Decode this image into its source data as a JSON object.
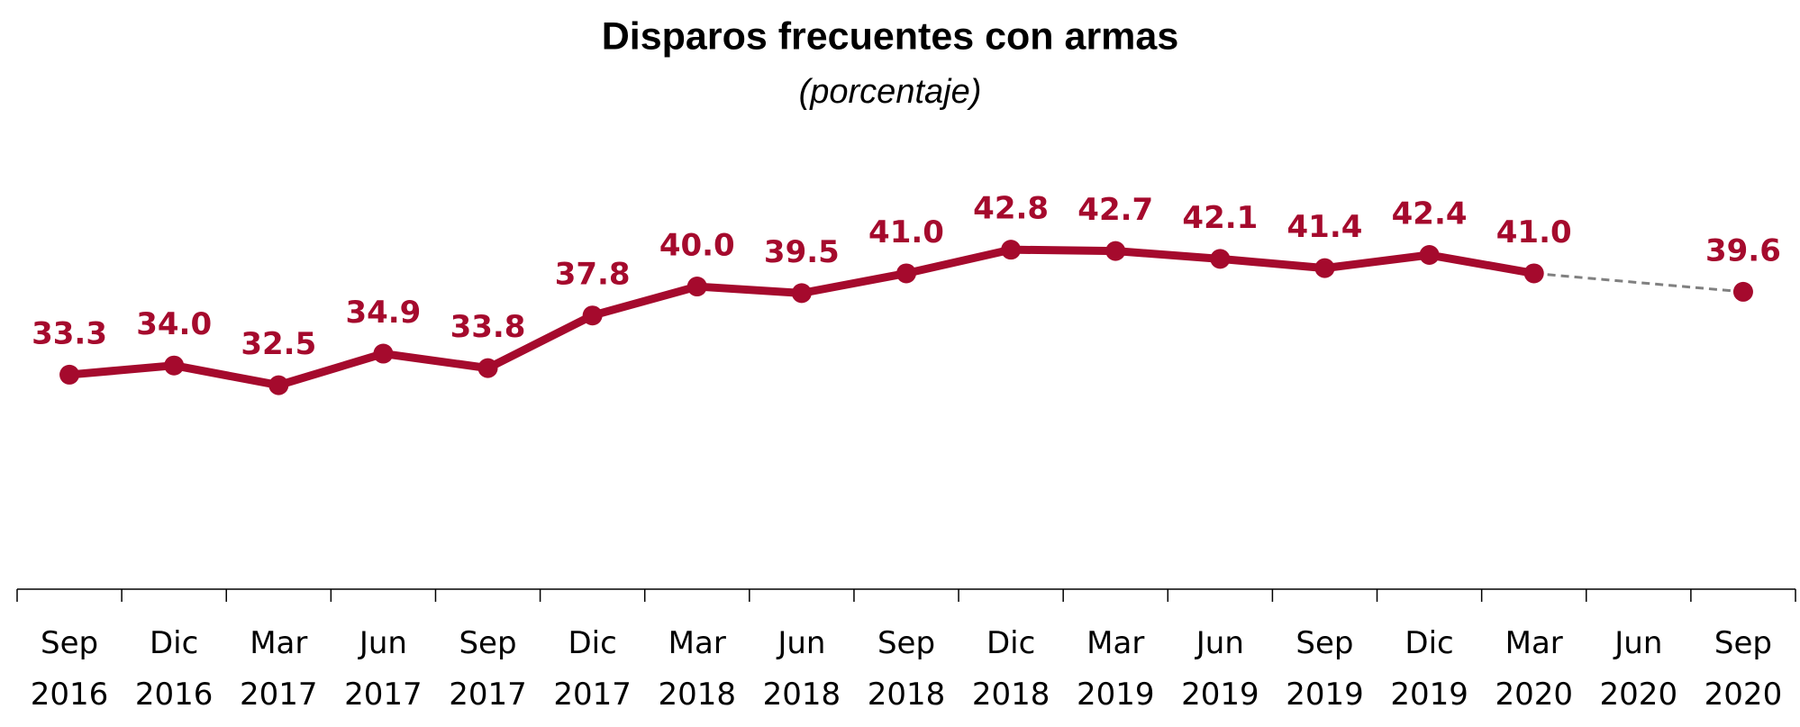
{
  "chart_data": {
    "type": "line",
    "title": "Disparos frecuentes con armas",
    "subtitle": "(porcentaje)",
    "categories": [
      "Sep 2016",
      "Dic 2016",
      "Mar 2017",
      "Jun 2017",
      "Sep 2017",
      "Dic 2017",
      "Mar 2018",
      "Jun 2018",
      "Sep 2018",
      "Dic 2018",
      "Mar 2019",
      "Jun 2019",
      "Sep 2019",
      "Dic 2019",
      "Mar 2020",
      "Jun 2020",
      "Sep 2020"
    ],
    "series": [
      {
        "name": "Disparos frecuentes con armas",
        "color": "#a50a2d",
        "values": [
          33.3,
          34.0,
          32.5,
          34.9,
          33.8,
          37.8,
          40.0,
          39.5,
          41.0,
          42.8,
          42.7,
          42.1,
          41.4,
          42.4,
          41.0,
          null,
          39.6
        ],
        "value_labels": [
          "33.3",
          "34.0",
          "32.5",
          "34.9",
          "33.8",
          "37.8",
          "40.0",
          "39.5",
          "41.0",
          "42.8",
          "42.7",
          "42.1",
          "41.4",
          "42.4",
          "41.0",
          null,
          "39.6"
        ]
      }
    ],
    "gap_line": {
      "color": "#808080",
      "style": "dashed"
    },
    "ylim": [
      17,
      50
    ]
  }
}
